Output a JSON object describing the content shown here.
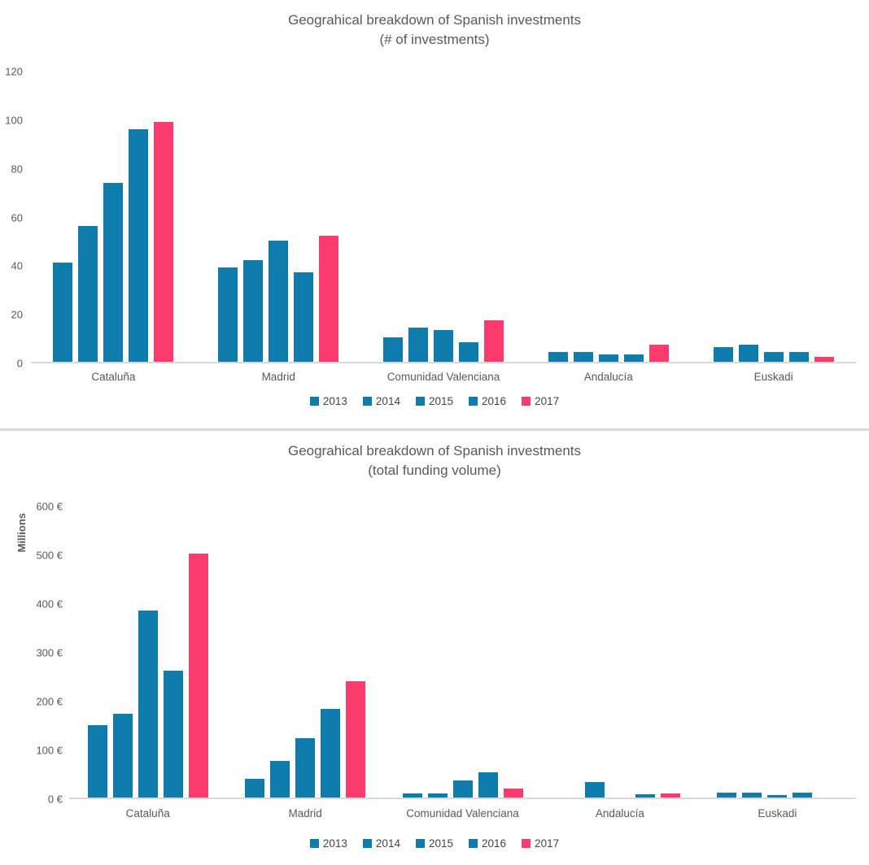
{
  "page": {
    "background": "#ffffff"
  },
  "colors": {
    "bar_blue": "#0e7dad",
    "bar_pink": "#fb3a6e",
    "text_gray": "#595959",
    "legend_text": "#444444",
    "axis_line": "#d9d9d9",
    "divider": "#d9d9d9"
  },
  "chart_data": [
    {
      "type": "bar",
      "title": "Geograhical breakdown of Spanish investments",
      "subtitle": "(# of investments)",
      "categories": [
        "Cataluña",
        "Madrid",
        "Comunidad Valenciana",
        "Andalucía",
        "Euskadi"
      ],
      "series": [
        {
          "name": "2013",
          "color": "#0e7dad",
          "values": [
            41,
            39,
            10,
            4,
            6
          ]
        },
        {
          "name": "2014",
          "color": "#0e7dad",
          "values": [
            56,
            42,
            14,
            4,
            7
          ]
        },
        {
          "name": "2015",
          "color": "#0e7dad",
          "values": [
            74,
            50,
            13,
            3,
            4
          ]
        },
        {
          "name": "2016",
          "color": "#0e7dad",
          "values": [
            96,
            37,
            8,
            3,
            4
          ]
        },
        {
          "name": "2017",
          "color": "#fb3a6e",
          "values": [
            99,
            52,
            17,
            7,
            2
          ]
        }
      ],
      "ylabel": "",
      "xlabel": "",
      "ylim": [
        0,
        120
      ],
      "ytick_step": 20,
      "ytick_suffix": "",
      "grid": false,
      "legend_position": "bottom"
    },
    {
      "type": "bar",
      "title": "Geograhical breakdown of Spanish investments",
      "subtitle": "(total funding volume)",
      "categories": [
        "Cataluña",
        "Madrid",
        "Comunidad Valenciana",
        "Andalucía",
        "Euskadi"
      ],
      "series": [
        {
          "name": "2013",
          "color": "#0e7dad",
          "values": [
            150,
            39,
            8,
            0,
            10
          ]
        },
        {
          "name": "2014",
          "color": "#0e7dad",
          "values": [
            172,
            76,
            8,
            32,
            10
          ]
        },
        {
          "name": "2015",
          "color": "#0e7dad",
          "values": [
            386,
            123,
            36,
            0,
            5
          ]
        },
        {
          "name": "2016",
          "color": "#0e7dad",
          "values": [
            262,
            182,
            52,
            6,
            10
          ]
        },
        {
          "name": "2017",
          "color": "#fb3a6e",
          "values": [
            503,
            239,
            19,
            9,
            0
          ]
        }
      ],
      "ylabel": "Millions",
      "xlabel": "",
      "ylim": [
        0,
        600
      ],
      "ytick_step": 100,
      "ytick_suffix": " €",
      "grid": false,
      "legend_position": "bottom"
    }
  ]
}
